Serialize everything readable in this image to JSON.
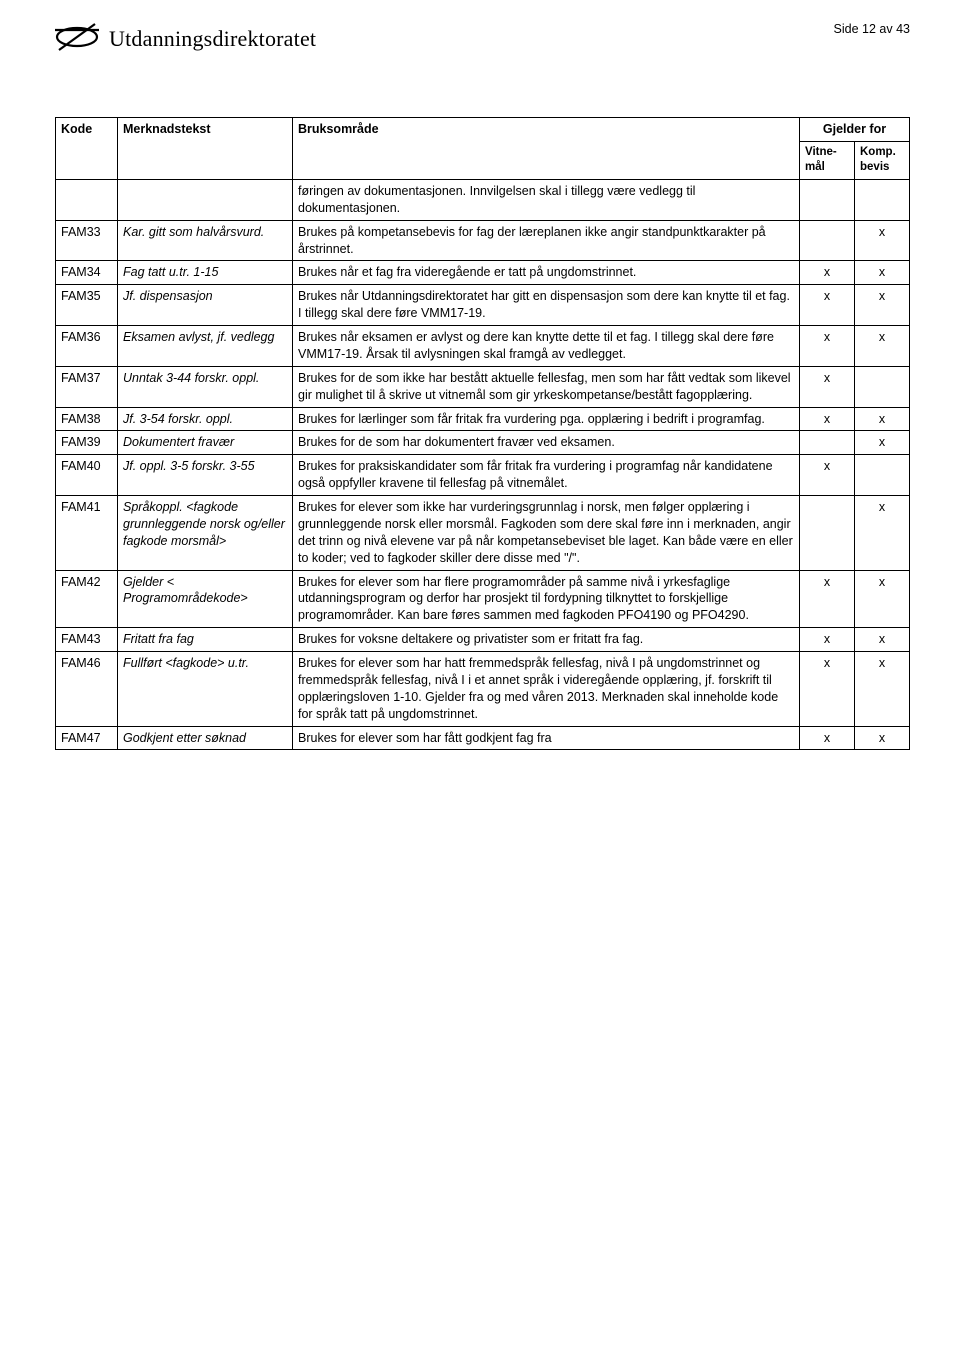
{
  "header": {
    "org_name": "Utdanningsdirektoratet",
    "page_number": "Side 12 av 43"
  },
  "table": {
    "headers": {
      "kode": "Kode",
      "merknad": "Merknadstekst",
      "bruk": "Bruksområde",
      "gjelder_for": "Gjelder for",
      "vitnemal": "Vitne-mål",
      "kompbevis": "Komp. bevis"
    },
    "rows": [
      {
        "kode": "",
        "merknad": "",
        "bruk": "føringen av dokumentasjonen. Innvilgelsen skal i tillegg være vedlegg til dokumentasjonen.",
        "vit": "",
        "komp": ""
      },
      {
        "kode": "FAM33",
        "merknad": "Kar. gitt som halvårsvurd.",
        "bruk": "Brukes på kompetansebevis for fag der læreplanen ikke angir standpunktkarakter på årstrinnet.",
        "vit": "",
        "komp": "x"
      },
      {
        "kode": "FAM34",
        "merknad": "Fag tatt u.tr. 1-15",
        "bruk": "Brukes når et fag fra videregående er tatt på ungdomstrinnet.",
        "vit": "x",
        "komp": "x"
      },
      {
        "kode": "FAM35",
        "merknad": "Jf. dispensasjon",
        "bruk": "Brukes når Utdanningsdirektoratet har gitt en dispensasjon som dere kan knytte til et fag. I tillegg skal dere føre VMM17-19.",
        "vit": "x",
        "komp": "x"
      },
      {
        "kode": "FAM36",
        "merknad": "Eksamen avlyst, jf. vedlegg",
        "bruk": "Brukes når eksamen er avlyst og dere kan knytte dette til et fag. I tillegg skal dere føre VMM17-19. Årsak til avlysningen skal framgå av vedlegget.",
        "vit": "x",
        "komp": "x"
      },
      {
        "kode": "FAM37",
        "merknad": "Unntak 3-44 forskr. oppl.",
        "bruk": "Brukes for de som ikke har bestått aktuelle fellesfag, men som har fått vedtak som likevel gir mulighet til å skrive ut vitnemål som gir yrkeskompetanse/bestått fagopplæring.",
        "vit": "x",
        "komp": ""
      },
      {
        "kode": "FAM38",
        "merknad": "Jf. 3-54 forskr. oppl.",
        "bruk": "Brukes for lærlinger som får fritak fra vurdering pga. opplæring i bedrift i programfag.",
        "vit": "x",
        "komp": "x"
      },
      {
        "kode": "FAM39",
        "merknad": "Dokumentert fravær",
        "bruk": "Brukes for de som har dokumentert fravær ved eksamen.",
        "vit": "",
        "komp": "x"
      },
      {
        "kode": "FAM40",
        "merknad": "Jf. oppl. 3-5 forskr. 3-55",
        "bruk": "Brukes for praksiskandidater som får fritak fra vurdering i programfag når kandidatene også oppfyller kravene til fellesfag på vitnemålet.",
        "vit": "x",
        "komp": ""
      },
      {
        "kode": "FAM41",
        "merknad": "Språkoppl. <fagkode grunnleggende norsk og/eller fagkode morsmål>",
        "bruk": "Brukes for elever som ikke har vurderingsgrunnlag i norsk, men følger opplæring i grunnleggende norsk eller morsmål. Fagkoden som dere skal føre inn i merknaden, angir det trinn og nivå elevene var på når kompetansebeviset ble laget. Kan både være en eller to koder; ved to fagkoder skiller dere disse med \"/\".",
        "vit": "",
        "komp": "x"
      },
      {
        "kode": "FAM42",
        "merknad": "Gjelder < Programområdekode>",
        "bruk": "Brukes for elever som har flere programområder på samme nivå i yrkesfaglige utdanningsprogram og derfor har prosjekt til fordypning tilknyttet to forskjellige programområder. Kan bare føres sammen med fagkoden PFO4190 og PFO4290.",
        "vit": "x",
        "komp": "x"
      },
      {
        "kode": "FAM43",
        "merknad": "Fritatt fra fag",
        "bruk": "Brukes for voksne deltakere og privatister som er fritatt fra fag.",
        "vit": "x",
        "komp": "x"
      },
      {
        "kode": "FAM46",
        "merknad": "Fullført <fagkode> u.tr.",
        "bruk": "Brukes for elever som har hatt fremmedspråk fellesfag, nivå I på ungdomstrinnet og fremmedspråk fellesfag, nivå I i et annet språk i videregående opplæring, jf. forskrift til opplæringsloven 1-10. Gjelder fra og med våren 2013. Merknaden skal inneholde kode for språk tatt på ungdomstrinnet.",
        "vit": "x",
        "komp": "x"
      },
      {
        "kode": "FAM47",
        "merknad": "Godkjent etter søknad",
        "bruk": "Brukes for elever som har fått godkjent fag fra",
        "vit": "x",
        "komp": "x"
      }
    ]
  }
}
